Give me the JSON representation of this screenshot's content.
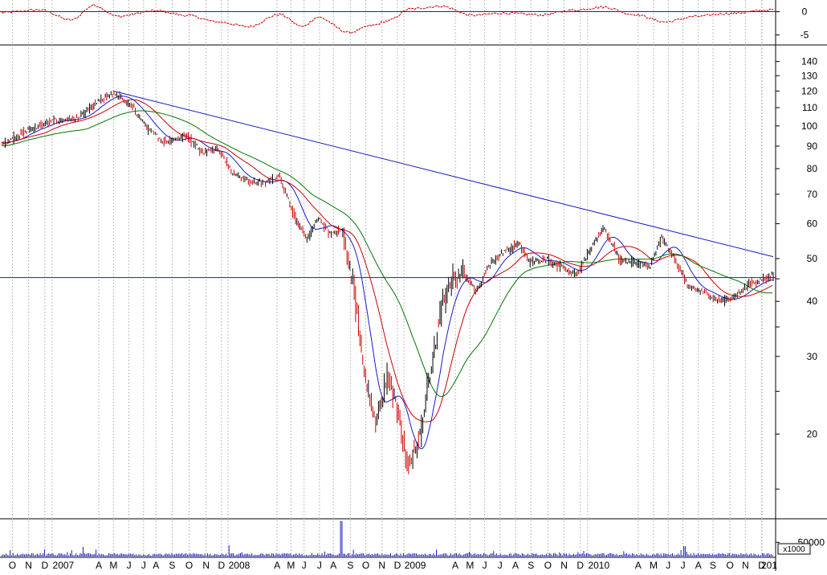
{
  "chart_data": {
    "type": "line",
    "panels": {
      "oscillator": {
        "ticks": [
          {
            "value": 0,
            "label": "0"
          },
          {
            "value": -5,
            "label": "-5"
          }
        ],
        "ylim": [
          -7,
          2
        ],
        "series_color": "#cc0000",
        "zero_line_color": "#1a1acc",
        "knots": [
          {
            "x": 0,
            "y": -0.2
          },
          {
            "x": 0.05,
            "y": 0.4
          },
          {
            "x": 0.09,
            "y": -1.8
          },
          {
            "x": 0.12,
            "y": 1.4
          },
          {
            "x": 0.15,
            "y": -1.0
          },
          {
            "x": 0.2,
            "y": 0.2
          },
          {
            "x": 0.24,
            "y": -0.8
          },
          {
            "x": 0.28,
            "y": -2.2
          },
          {
            "x": 0.32,
            "y": -3.2
          },
          {
            "x": 0.36,
            "y": -0.6
          },
          {
            "x": 0.39,
            "y": -3.2
          },
          {
            "x": 0.41,
            "y": -1.2
          },
          {
            "x": 0.45,
            "y": -4.5
          },
          {
            "x": 0.48,
            "y": -3.0
          },
          {
            "x": 0.5,
            "y": -2.0
          },
          {
            "x": 0.53,
            "y": 0.6
          },
          {
            "x": 0.57,
            "y": 1.2
          },
          {
            "x": 0.61,
            "y": -0.8
          },
          {
            "x": 0.65,
            "y": -0.3
          },
          {
            "x": 0.7,
            "y": -0.7
          },
          {
            "x": 0.74,
            "y": 0.3
          },
          {
            "x": 0.78,
            "y": 1.0
          },
          {
            "x": 0.82,
            "y": -0.6
          },
          {
            "x": 0.86,
            "y": -2.2
          },
          {
            "x": 0.9,
            "y": -1.0
          },
          {
            "x": 0.94,
            "y": -0.4
          },
          {
            "x": 1.0,
            "y": 0.4
          }
        ]
      },
      "price": {
        "scale": "log",
        "ylim": [
          12.9,
          152
        ],
        "ticks": [
          140,
          130,
          120,
          110,
          100,
          90,
          80,
          70,
          60,
          50,
          40,
          30,
          20
        ],
        "minor_ticks": [
          15,
          25,
          35,
          45
        ],
        "horizontal_line": 45.3,
        "trend_line": {
          "start": [
            0.145,
            120
          ],
          "end": [
            1.0,
            50.5
          ]
        },
        "up_color": "#000000",
        "down_color": "#cc0000",
        "key_points": [
          {
            "x": 0.0,
            "y": 91
          },
          {
            "x": 0.035,
            "y": 98
          },
          {
            "x": 0.07,
            "y": 103
          },
          {
            "x": 0.1,
            "y": 104
          },
          {
            "x": 0.12,
            "y": 112
          },
          {
            "x": 0.145,
            "y": 119
          },
          {
            "x": 0.17,
            "y": 110
          },
          {
            "x": 0.19,
            "y": 98
          },
          {
            "x": 0.21,
            "y": 92
          },
          {
            "x": 0.24,
            "y": 95
          },
          {
            "x": 0.26,
            "y": 87
          },
          {
            "x": 0.28,
            "y": 89
          },
          {
            "x": 0.3,
            "y": 78
          },
          {
            "x": 0.32,
            "y": 75
          },
          {
            "x": 0.34,
            "y": 74
          },
          {
            "x": 0.36,
            "y": 77
          },
          {
            "x": 0.38,
            "y": 62
          },
          {
            "x": 0.395,
            "y": 55
          },
          {
            "x": 0.41,
            "y": 62
          },
          {
            "x": 0.425,
            "y": 57
          },
          {
            "x": 0.44,
            "y": 58
          },
          {
            "x": 0.455,
            "y": 45
          },
          {
            "x": 0.47,
            "y": 27
          },
          {
            "x": 0.485,
            "y": 21
          },
          {
            "x": 0.5,
            "y": 27
          },
          {
            "x": 0.515,
            "y": 22
          },
          {
            "x": 0.525,
            "y": 17
          },
          {
            "x": 0.54,
            "y": 19
          },
          {
            "x": 0.555,
            "y": 27
          },
          {
            "x": 0.57,
            "y": 39
          },
          {
            "x": 0.585,
            "y": 45
          },
          {
            "x": 0.6,
            "y": 46
          },
          {
            "x": 0.615,
            "y": 42
          },
          {
            "x": 0.63,
            "y": 48
          },
          {
            "x": 0.65,
            "y": 52
          },
          {
            "x": 0.67,
            "y": 54
          },
          {
            "x": 0.685,
            "y": 49
          },
          {
            "x": 0.705,
            "y": 50
          },
          {
            "x": 0.725,
            "y": 48
          },
          {
            "x": 0.745,
            "y": 46
          },
          {
            "x": 0.76,
            "y": 51
          },
          {
            "x": 0.78,
            "y": 59
          },
          {
            "x": 0.8,
            "y": 50
          },
          {
            "x": 0.82,
            "y": 49
          },
          {
            "x": 0.84,
            "y": 48
          },
          {
            "x": 0.855,
            "y": 56
          },
          {
            "x": 0.875,
            "y": 49
          },
          {
            "x": 0.89,
            "y": 43
          },
          {
            "x": 0.91,
            "y": 42
          },
          {
            "x": 0.93,
            "y": 40
          },
          {
            "x": 0.95,
            "y": 41
          },
          {
            "x": 0.97,
            "y": 44
          },
          {
            "x": 0.99,
            "y": 45
          },
          {
            "x": 1.0,
            "y": 46
          }
        ],
        "moving_averages": [
          {
            "color": "#1a1acc",
            "period": 10
          },
          {
            "color": "#cc0000",
            "period": 20
          },
          {
            "color": "#007700",
            "period": 40
          }
        ]
      },
      "volume": {
        "ticks": [
          {
            "value": 50000,
            "label": "50000"
          }
        ],
        "ylim": [
          0,
          130000
        ],
        "unit_label": "x1000",
        "bar_color": "#1a1acc",
        "spikes": [
          {
            "x": 0.44,
            "value": 125000
          },
          {
            "x": 0.295,
            "value": 40000
          },
          {
            "x": 0.105,
            "value": 34000
          },
          {
            "x": 0.885,
            "value": 36000
          }
        ],
        "baseline": 12000
      }
    },
    "x_axis": {
      "labels": [
        {
          "label": "O",
          "x": 0.014
        },
        {
          "label": "N",
          "x": 0.035
        },
        {
          "label": "D",
          "x": 0.056
        },
        {
          "label": "2007",
          "x": 0.08
        },
        {
          "label": "A",
          "x": 0.126
        },
        {
          "label": "M",
          "x": 0.145
        },
        {
          "label": "J",
          "x": 0.165
        },
        {
          "label": "J",
          "x": 0.184
        },
        {
          "label": "A",
          "x": 0.2
        },
        {
          "label": "S",
          "x": 0.221
        },
        {
          "label": "O",
          "x": 0.243
        },
        {
          "label": "N",
          "x": 0.265
        },
        {
          "label": "D",
          "x": 0.285
        },
        {
          "label": "2008",
          "x": 0.308
        },
        {
          "label": "A",
          "x": 0.357
        },
        {
          "label": "M",
          "x": 0.375
        },
        {
          "label": "J",
          "x": 0.392
        },
        {
          "label": "J",
          "x": 0.412
        },
        {
          "label": "A",
          "x": 0.43
        },
        {
          "label": "S",
          "x": 0.452
        },
        {
          "label": "O",
          "x": 0.472
        },
        {
          "label": "N",
          "x": 0.493
        },
        {
          "label": "D",
          "x": 0.513
        },
        {
          "label": "2009",
          "x": 0.536
        },
        {
          "label": "A",
          "x": 0.588
        },
        {
          "label": "M",
          "x": 0.607
        },
        {
          "label": "J",
          "x": 0.626
        },
        {
          "label": "J",
          "x": 0.646
        },
        {
          "label": "A",
          "x": 0.666
        },
        {
          "label": "S",
          "x": 0.686
        },
        {
          "label": "O",
          "x": 0.708
        },
        {
          "label": "N",
          "x": 0.729
        },
        {
          "label": "D",
          "x": 0.75
        },
        {
          "label": "2010",
          "x": 0.774
        },
        {
          "label": "A",
          "x": 0.825
        },
        {
          "label": "M",
          "x": 0.845
        },
        {
          "label": "J",
          "x": 0.864
        },
        {
          "label": "J",
          "x": 0.883
        },
        {
          "label": "A",
          "x": 0.903
        },
        {
          "label": "S",
          "x": 0.922
        },
        {
          "label": "O",
          "x": 0.944
        },
        {
          "label": "N",
          "x": 0.964
        },
        {
          "label": "D",
          "x": 0.985
        },
        {
          "label": "201",
          "x": 1.0
        }
      ]
    }
  }
}
